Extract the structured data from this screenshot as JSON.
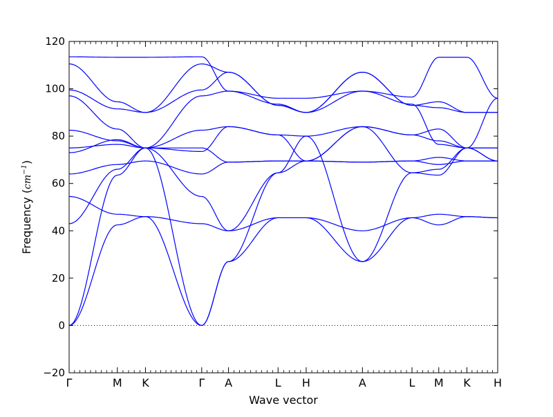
{
  "chart_data": {
    "type": "line",
    "title": "",
    "xlabel": "Wave vector",
    "ylabel": "Frequency (cm⁻¹)",
    "ylabel_prefix": "Frequency (",
    "ylabel_unit": "cm",
    "ylabel_exp": "−1",
    "ylabel_suffix": ")",
    "ylim": [
      -20,
      120
    ],
    "yticks": [
      -20,
      0,
      20,
      40,
      60,
      80,
      100,
      120
    ],
    "ytick_labels": [
      "−20",
      "0",
      "20",
      "40",
      "60",
      "80",
      "100",
      "120"
    ],
    "xlim": [
      0,
      16
    ],
    "xticks": [
      {
        "label": "Γ",
        "x": 0.0
      },
      {
        "label": "M",
        "x": 1.8
      },
      {
        "label": "K",
        "x": 2.85
      },
      {
        "label": "Γ",
        "x": 4.95
      },
      {
        "label": "A",
        "x": 5.95
      },
      {
        "label": "L",
        "x": 7.8
      },
      {
        "label": "H",
        "x": 8.85
      },
      {
        "label": "A",
        "x": 10.95
      },
      {
        "label": "L",
        "x": 12.8
      },
      {
        "label": "M",
        "x": 13.8
      },
      {
        "label": "K",
        "x": 14.85
      },
      {
        "label": "H",
        "x": 16.0
      }
    ],
    "series_color": "#0000ff",
    "zero_line": true,
    "grid": false,
    "series": [
      {
        "x": [
          0,
          1.8,
          2.85,
          4.95,
          5.95,
          7.8,
          8.85,
          10.95,
          12.8,
          13.8,
          14.85,
          16.0
        ],
        "y": [
          0,
          42.5,
          46.0,
          0,
          27.0,
          45.5,
          45.5,
          27.0,
          45.5,
          42.5,
          46.0,
          45.5
        ]
      },
      {
        "x": [
          0,
          1.8,
          2.85,
          4.95,
          5.95,
          7.8,
          8.85,
          10.95,
          12.8,
          13.8,
          14.85,
          16.0
        ],
        "y": [
          0,
          63.5,
          75.0,
          0,
          27.0,
          64.5,
          80.0,
          27.0,
          64.5,
          63.5,
          75.0,
          69.5
        ]
      },
      {
        "x": [
          0,
          1.8,
          2.85,
          4.95,
          5.95,
          7.8,
          8.85,
          10.95,
          12.8,
          13.8,
          14.85,
          16.0
        ],
        "y": [
          43.0,
          66.0,
          75.0,
          54.5,
          40.0,
          45.5,
          45.5,
          40.0,
          45.5,
          47.0,
          46.0,
          45.5
        ]
      },
      {
        "x": [
          0,
          1.8,
          2.85,
          4.95,
          5.95,
          7.8,
          8.85,
          10.95,
          12.8,
          13.8,
          14.85,
          16.0
        ],
        "y": [
          54.5,
          47.0,
          46.0,
          43.0,
          40.0,
          64.5,
          69.5,
          84.0,
          64.5,
          66.0,
          75.0,
          69.5
        ]
      },
      {
        "x": [
          0,
          1.8,
          2.85,
          4.95,
          5.95,
          7.8,
          8.85,
          10.95,
          12.8,
          13.8,
          14.85,
          16.0
        ],
        "y": [
          64.0,
          68.0,
          69.5,
          64.0,
          69.0,
          69.5,
          69.5,
          69.0,
          69.5,
          68.0,
          69.5,
          69.5
        ]
      },
      {
        "x": [
          0,
          1.8,
          2.85,
          4.95,
          5.95,
          7.8,
          8.85,
          10.95,
          12.8,
          13.8,
          14.85,
          16.0
        ],
        "y": [
          73.0,
          78.5,
          75.0,
          75.0,
          69.0,
          69.5,
          69.5,
          69.0,
          69.5,
          71.0,
          69.5,
          69.5
        ]
      },
      {
        "x": [
          0,
          1.8,
          2.85,
          4.95,
          5.95,
          7.8,
          8.85,
          10.95,
          12.8,
          13.8,
          14.85,
          16.0
        ],
        "y": [
          75.0,
          76.5,
          75.0,
          73.5,
          84.0,
          80.5,
          69.5,
          84.0,
          80.5,
          78.0,
          75.0,
          75.0
        ]
      },
      {
        "x": [
          0,
          1.8,
          2.85,
          4.95,
          5.95,
          7.8,
          8.85,
          10.95,
          12.8,
          13.8,
          14.85,
          16.0
        ],
        "y": [
          82.5,
          78.0,
          75.0,
          82.5,
          84.0,
          80.5,
          80.0,
          84.0,
          80.5,
          83.0,
          75.0,
          75.0
        ]
      },
      {
        "x": [
          0,
          1.8,
          2.85,
          4.95,
          5.95,
          7.8,
          8.85,
          10.95,
          12.8,
          13.8,
          14.85,
          16.0
        ],
        "y": [
          97.0,
          83.0,
          75.0,
          97.0,
          99.0,
          93.5,
          90.0,
          99.0,
          93.5,
          76.5,
          75.0,
          96.0
        ]
      },
      {
        "x": [
          0,
          1.8,
          2.85,
          4.95,
          5.95,
          7.8,
          8.85,
          10.95,
          12.8,
          13.8,
          14.85,
          16.0
        ],
        "y": [
          99.5,
          91.5,
          90.0,
          99.5,
          107.0,
          93.0,
          90.0,
          107.0,
          93.0,
          92.0,
          90.0,
          90.0
        ]
      },
      {
        "x": [
          0,
          1.8,
          2.85,
          4.95,
          5.95,
          7.8,
          8.85,
          10.95,
          12.8,
          13.8,
          14.85,
          16.0
        ],
        "y": [
          110.5,
          94.5,
          90.0,
          110.5,
          107.0,
          93.0,
          90.0,
          107.0,
          93.0,
          94.5,
          90.0,
          90.0
        ]
      },
      {
        "x": [
          0,
          1.8,
          2.85,
          4.95,
          5.95,
          7.8,
          8.85,
          10.95,
          12.8,
          13.8,
          14.85,
          16.0
        ],
        "y": [
          113.5,
          113.3,
          113.3,
          113.5,
          99.0,
          96.0,
          96.0,
          99.0,
          96.5,
          113.3,
          113.3,
          96.0
        ]
      }
    ]
  }
}
